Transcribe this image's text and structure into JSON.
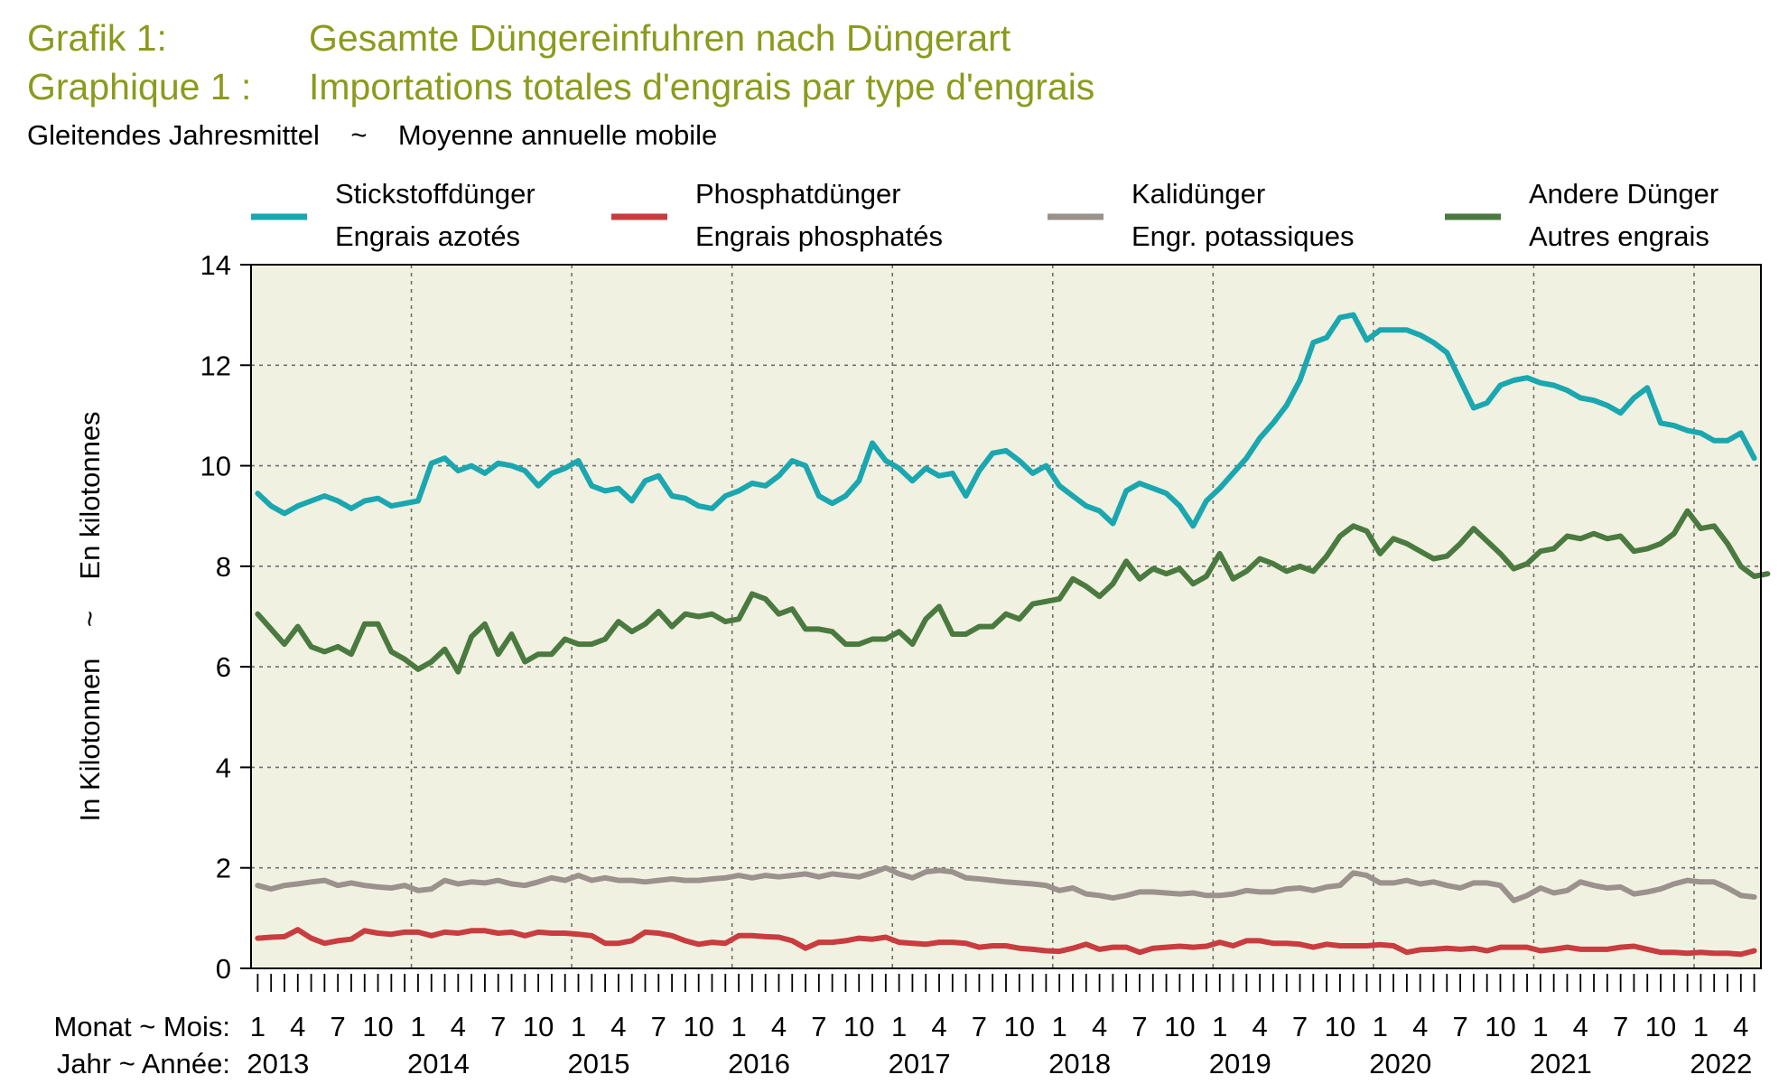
{
  "header": {
    "title_de_label": "Grafik 1:",
    "title_de": "Gesamte Düngereinfuhren nach Düngerart",
    "title_fr_label": "Graphique 1 :",
    "title_fr": "Importations totales d'engrais par type d'engrais",
    "subtitle": "Gleitendes Jahresmittel    ~    Moyenne annuelle mobile"
  },
  "chart_data": {
    "type": "line",
    "ylabel": "In Kilotonnen    ~    En kilotonnes",
    "ylim": [
      0,
      14
    ],
    "yticks": [
      "0",
      "2",
      "4",
      "6",
      "8",
      "10",
      "12",
      "14"
    ],
    "grid": true,
    "legend_position": "top",
    "background_color": "#f1f1e1",
    "month_row_label": "Monat ~ Mois:",
    "year_row_label": "Jahr ~ Année:",
    "month_labels": [
      "1",
      "4",
      "7",
      "10"
    ],
    "years": [
      "2013",
      "2014",
      "2015",
      "2016",
      "2017",
      "2018",
      "2019",
      "2020",
      "2021",
      "2022"
    ],
    "x_start": "2013-01",
    "x_end": "2022-06",
    "series": [
      {
        "name_de": "Stickstoffdünger",
        "name_fr": "Engrais azotés",
        "color": "#1aa7b0",
        "values": [
          9.45,
          9.2,
          9.05,
          9.2,
          9.3,
          9.4,
          9.3,
          9.15,
          9.3,
          9.35,
          9.2,
          9.25,
          9.3,
          10.05,
          10.15,
          9.9,
          10.0,
          9.85,
          10.05,
          10.0,
          9.9,
          9.6,
          9.85,
          9.95,
          10.1,
          9.6,
          9.5,
          9.55,
          9.3,
          9.7,
          9.8,
          9.4,
          9.35,
          9.2,
          9.15,
          9.4,
          9.5,
          9.65,
          9.6,
          9.8,
          10.1,
          10.0,
          9.4,
          9.25,
          9.4,
          9.7,
          10.45,
          10.1,
          9.95,
          9.7,
          9.95,
          9.8,
          9.85,
          9.4,
          9.9,
          10.25,
          10.3,
          10.1,
          9.85,
          10.0,
          9.6,
          9.4,
          9.2,
          9.1,
          8.85,
          9.5,
          9.65,
          9.55,
          9.45,
          9.2,
          8.8,
          9.3,
          9.55,
          9.85,
          10.15,
          10.55,
          10.85,
          11.2,
          11.7,
          12.45,
          12.55,
          12.95,
          13.0,
          12.5,
          12.7,
          12.7,
          12.7,
          12.6,
          12.45,
          12.25,
          11.7,
          11.15,
          11.25,
          11.6,
          11.7,
          11.75,
          11.65,
          11.6,
          11.5,
          11.35,
          11.3,
          11.2,
          11.05,
          11.35,
          11.55,
          10.85,
          10.8,
          10.7,
          10.65,
          10.5,
          10.5,
          10.65,
          10.15
        ]
      },
      {
        "name_de": "Phosphatdünger",
        "name_fr": "Engrais phosphatés",
        "color": "#c93c3f",
        "values": [
          0.6,
          0.62,
          0.63,
          0.77,
          0.6,
          0.5,
          0.55,
          0.58,
          0.75,
          0.7,
          0.68,
          0.72,
          0.72,
          0.65,
          0.72,
          0.7,
          0.75,
          0.75,
          0.7,
          0.72,
          0.65,
          0.72,
          0.7,
          0.7,
          0.68,
          0.65,
          0.5,
          0.5,
          0.55,
          0.72,
          0.7,
          0.65,
          0.55,
          0.48,
          0.52,
          0.5,
          0.65,
          0.65,
          0.63,
          0.62,
          0.55,
          0.4,
          0.52,
          0.52,
          0.55,
          0.6,
          0.58,
          0.62,
          0.52,
          0.5,
          0.48,
          0.52,
          0.52,
          0.5,
          0.42,
          0.45,
          0.45,
          0.4,
          0.38,
          0.35,
          0.34,
          0.4,
          0.48,
          0.38,
          0.42,
          0.42,
          0.32,
          0.4,
          0.42,
          0.44,
          0.42,
          0.44,
          0.52,
          0.45,
          0.55,
          0.55,
          0.5,
          0.5,
          0.48,
          0.42,
          0.48,
          0.45,
          0.45,
          0.45,
          0.47,
          0.45,
          0.32,
          0.37,
          0.38,
          0.4,
          0.38,
          0.4,
          0.35,
          0.42,
          0.42,
          0.42,
          0.35,
          0.38,
          0.42,
          0.38,
          0.38,
          0.38,
          0.42,
          0.44,
          0.38,
          0.32,
          0.32,
          0.3,
          0.32,
          0.3,
          0.3,
          0.28,
          0.35
        ]
      },
      {
        "name_de": "Kalidünger",
        "name_fr": "Engr. potassiques",
        "color": "#9b918d",
        "values": [
          1.65,
          1.58,
          1.65,
          1.68,
          1.72,
          1.75,
          1.65,
          1.7,
          1.65,
          1.62,
          1.6,
          1.65,
          1.55,
          1.58,
          1.75,
          1.68,
          1.72,
          1.7,
          1.75,
          1.68,
          1.65,
          1.72,
          1.8,
          1.75,
          1.85,
          1.75,
          1.8,
          1.75,
          1.75,
          1.72,
          1.75,
          1.78,
          1.75,
          1.75,
          1.78,
          1.8,
          1.85,
          1.8,
          1.85,
          1.82,
          1.85,
          1.88,
          1.82,
          1.88,
          1.85,
          1.82,
          1.9,
          2.0,
          1.88,
          1.8,
          1.92,
          1.95,
          1.92,
          1.8,
          1.78,
          1.75,
          1.72,
          1.7,
          1.68,
          1.65,
          1.55,
          1.6,
          1.48,
          1.45,
          1.4,
          1.45,
          1.52,
          1.52,
          1.5,
          1.48,
          1.5,
          1.45,
          1.45,
          1.48,
          1.55,
          1.52,
          1.52,
          1.58,
          1.6,
          1.55,
          1.62,
          1.65,
          1.9,
          1.85,
          1.7,
          1.7,
          1.75,
          1.68,
          1.72,
          1.65,
          1.6,
          1.7,
          1.7,
          1.65,
          1.35,
          1.45,
          1.6,
          1.5,
          1.55,
          1.72,
          1.65,
          1.6,
          1.62,
          1.48,
          1.52,
          1.58,
          1.68,
          1.75,
          1.72,
          1.72,
          1.6,
          1.45,
          1.42
        ]
      },
      {
        "name_de": "Andere Dünger",
        "name_fr": "Autres engrais",
        "color": "#4a7a3f",
        "values": [
          7.05,
          6.75,
          6.45,
          6.8,
          6.4,
          6.3,
          6.4,
          6.25,
          6.85,
          6.85,
          6.3,
          6.15,
          5.95,
          6.1,
          6.35,
          5.9,
          6.6,
          6.85,
          6.25,
          6.65,
          6.1,
          6.25,
          6.25,
          6.55,
          6.45,
          6.45,
          6.55,
          6.9,
          6.7,
          6.85,
          7.1,
          6.8,
          7.05,
          7.0,
          7.05,
          6.9,
          6.95,
          7.45,
          7.35,
          7.05,
          7.15,
          6.75,
          6.75,
          6.7,
          6.45,
          6.45,
          6.55,
          6.55,
          6.7,
          6.45,
          6.95,
          7.2,
          6.65,
          6.65,
          6.8,
          6.8,
          7.05,
          6.95,
          7.25,
          7.3,
          7.35,
          7.75,
          7.6,
          7.4,
          7.65,
          8.1,
          7.75,
          7.95,
          7.85,
          7.95,
          7.65,
          7.8,
          8.25,
          7.75,
          7.9,
          8.15,
          8.05,
          7.9,
          8.0,
          7.9,
          8.2,
          8.6,
          8.8,
          8.7,
          8.25,
          8.55,
          8.45,
          8.3,
          8.15,
          8.2,
          8.45,
          8.75,
          8.5,
          8.25,
          7.95,
          8.05,
          8.3,
          8.35,
          8.6,
          8.55,
          8.65,
          8.55,
          8.6,
          8.3,
          8.35,
          8.45,
          8.65,
          9.1,
          8.75,
          8.8,
          8.45,
          8.0,
          7.8,
          7.85
        ]
      }
    ]
  }
}
